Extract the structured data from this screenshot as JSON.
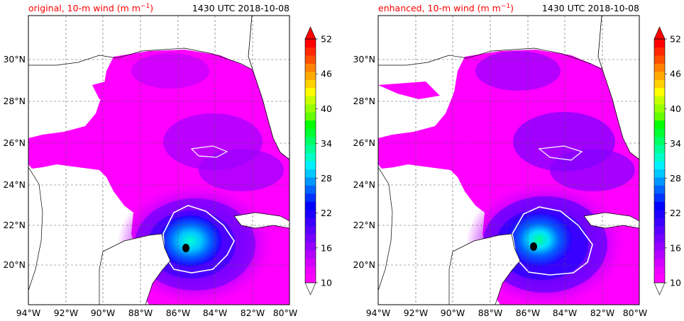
{
  "panels": [
    {
      "title_left": "original, 10-m wind (m m",
      "title_sup": "−1",
      "title_tail": ")",
      "title_right": "1430 UTC 2018-10-08"
    },
    {
      "title_left": "enhanced, 10-m wind (m m",
      "title_sup": "−1",
      "title_tail": ")",
      "title_right": "1430 UTC 2018-10-08"
    }
  ],
  "lat_labels": [
    "20°N",
    "22°N",
    "24°N",
    "26°N",
    "28°N",
    "30°N"
  ],
  "lon_labels": [
    "94°W",
    "92°W",
    "90°W",
    "88°W",
    "86°W",
    "84°W",
    "82°W",
    "80°W"
  ],
  "colorbar": {
    "tick_labels": [
      "10",
      "16",
      "22",
      "28",
      "34",
      "40",
      "46",
      "52"
    ],
    "levels": [
      10,
      52
    ],
    "colors": [
      "#ff00ff",
      "#ee00ff",
      "#d200ff",
      "#b400ff",
      "#9600ff",
      "#7800ff",
      "#5a00ff",
      "#3c00ff",
      "#1e00ff",
      "#0000ff",
      "#0032ff",
      "#0064ff",
      "#0096ff",
      "#00c8ff",
      "#00f0ff",
      "#00ffc8",
      "#00ff96",
      "#00ff64",
      "#00ff32",
      "#00ff00",
      "#64ff00",
      "#96ff00",
      "#c8ff00",
      "#ffff00",
      "#ffd200",
      "#ffaa00",
      "#ff8200",
      "#ff5000",
      "#ff2800",
      "#ff0000"
    ]
  },
  "map": {
    "lat_range": [
      18.2,
      32.2
    ],
    "lon_range": [
      -94,
      -80
    ]
  }
}
